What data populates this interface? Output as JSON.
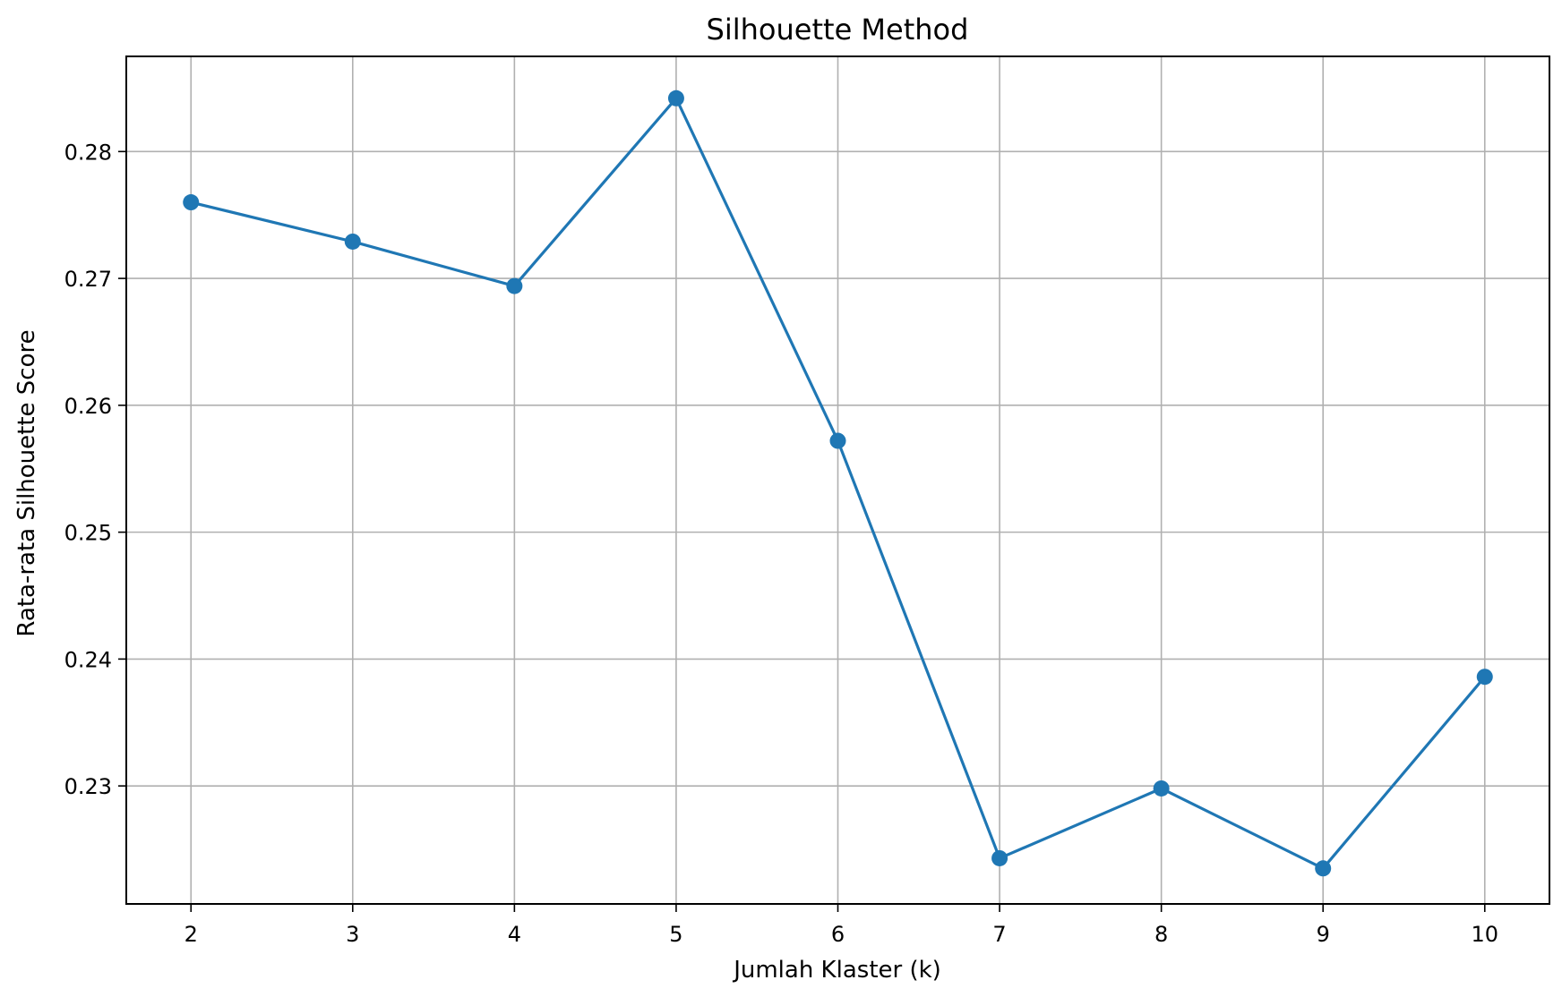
{
  "chart_data": {
    "type": "line",
    "title": "Silhouette Method",
    "xlabel": "Jumlah Klaster (k)",
    "ylabel": "Rata-rata Silhouette Score",
    "x": [
      2,
      3,
      4,
      5,
      6,
      7,
      8,
      9,
      10
    ],
    "series": [
      {
        "values": [
          0.276,
          0.2729,
          0.2694,
          0.2842,
          0.2572,
          0.2243,
          0.2298,
          0.2235,
          0.2386
        ],
        "color": "#1f77b4",
        "marker": "circle"
      }
    ],
    "xticks": [
      2,
      3,
      4,
      5,
      6,
      7,
      8,
      9,
      10
    ],
    "yticks": [
      0.23,
      0.24,
      0.25,
      0.26,
      0.27,
      0.28
    ],
    "ytick_labels": [
      "0.23",
      "0.24",
      "0.25",
      "0.26",
      "0.27",
      "0.28"
    ],
    "xlim": [
      1.6,
      10.4
    ],
    "ylim": [
      0.2207,
      0.2875
    ],
    "grid": true
  }
}
